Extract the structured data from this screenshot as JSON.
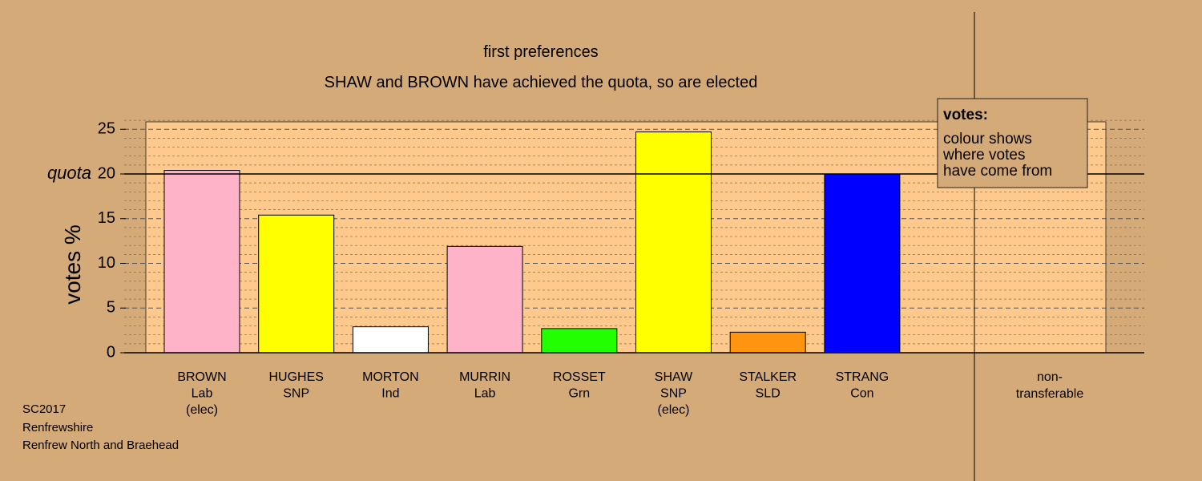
{
  "colors": {
    "background": "#d4aa78",
    "plot_area": "#fec98c",
    "bar_outline": "#000000"
  },
  "chart_data": {
    "type": "bar",
    "title": "first preferences",
    "subtitle": "SHAW and BROWN have achieved the quota, so are elected",
    "ylabel": "votes %",
    "ylim": [
      0,
      26
    ],
    "y_ticks": [
      "0",
      "5",
      "10",
      "15",
      "20",
      "25"
    ],
    "quota": 20,
    "quota_label": "quota",
    "grid": "dashed",
    "categories": [
      {
        "name": "BROWN",
        "party": "Lab",
        "status": "(elec)",
        "value": 20.4,
        "color": "#ffb3c8"
      },
      {
        "name": "HUGHES",
        "party": "SNP",
        "status": "",
        "value": 15.4,
        "color": "#ffff00"
      },
      {
        "name": "MORTON",
        "party": "Ind",
        "status": "",
        "value": 2.9,
        "color": "#ffffff"
      },
      {
        "name": "MURRIN",
        "party": "Lab",
        "status": "",
        "value": 11.9,
        "color": "#ffb3c8"
      },
      {
        "name": "ROSSET",
        "party": "Grn",
        "status": "",
        "value": 2.7,
        "color": "#22ff00"
      },
      {
        "name": "SHAW",
        "party": "SNP",
        "status": "(elec)",
        "value": 24.7,
        "color": "#ffff00"
      },
      {
        "name": "STALKER",
        "party": "SLD",
        "status": "",
        "value": 2.3,
        "color": "#ff9411"
      },
      {
        "name": "STRANG",
        "party": "Con",
        "status": "",
        "value": 20.0,
        "color": "#0000ff"
      }
    ],
    "nontransferable": {
      "line1": "non-",
      "line2": "transferable",
      "value": 0
    },
    "legend": {
      "title": "votes:",
      "lines": [
        "colour shows",
        "where votes",
        "have come from"
      ],
      "placement": "top-right"
    }
  },
  "footer": [
    "SC2017",
    "Renfrewshire",
    "Renfrew North and Braehead"
  ]
}
